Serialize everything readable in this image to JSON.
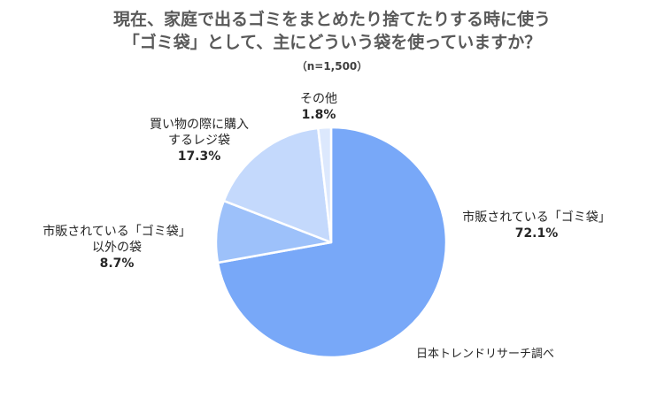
{
  "chart_data": {
    "type": "pie",
    "title_lines": [
      "現在、家庭で出るゴミをまとめたり捨てたりする時に使う",
      "「ゴミ袋」として、主にどういう袋を使っていますか？"
    ],
    "subtitle": "（n=1,500）",
    "slices": [
      {
        "label_lines": [
          "市販されている「ゴミ袋」"
        ],
        "value": 72.1,
        "value_label": "72.1%",
        "color": "#78A8F8"
      },
      {
        "label_lines": [
          "市販されている「ゴミ袋」",
          "以外の袋"
        ],
        "value": 8.7,
        "value_label": "8.7%",
        "color": "#9DC1FA"
      },
      {
        "label_lines": [
          "買い物の際に購入",
          "するレジ袋"
        ],
        "value": 17.3,
        "value_label": "17.3%",
        "color": "#C4D9FC"
      },
      {
        "label_lines": [
          "その他"
        ],
        "value": 1.8,
        "value_label": "1.8%",
        "color": "#DCE8FD"
      }
    ],
    "start": "top, clockwise",
    "source": "日本トレンドリサーチ調べ"
  }
}
